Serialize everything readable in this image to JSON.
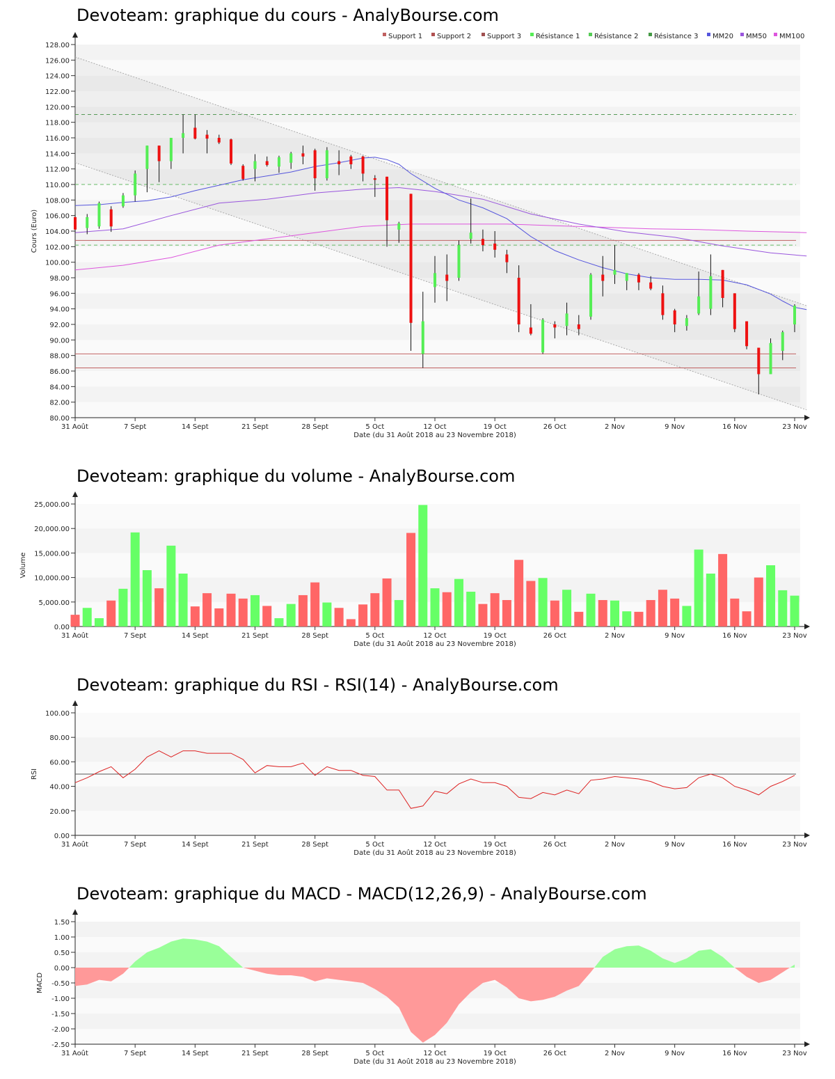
{
  "charts": {
    "price": {
      "title": "Devoteam: graphique du cours - AnalyBourse.com"
    },
    "volume": {
      "title": "Devoteam: graphique du volume - AnalyBourse.com"
    },
    "rsi": {
      "title": "Devoteam: graphique du RSI - RSI(14) - AnalyBourse.com"
    },
    "macd": {
      "title": "Devoteam: graphique du MACD - MACD(12,26,9) - AnalyBourse.com"
    }
  },
  "x_axis": {
    "label": "Date (du 31 Août 2018 au 23 Novembre 2018)",
    "ticks": [
      "31 Août",
      "7 Sept",
      "14 Sept",
      "21 Sept",
      "28 Sept",
      "5 Oct",
      "12 Oct",
      "19 Oct",
      "26 Oct",
      "2 Nov",
      "9 Nov",
      "16 Nov",
      "23 Nov"
    ]
  },
  "colors": {
    "up": "#55ee55",
    "down": "#ee1111",
    "mm20": "#5555dd",
    "mm50": "#9955dd",
    "mm100": "#dd55dd",
    "support": "#c06060",
    "resistance": "#66bb66",
    "vol_up": "#66ff66",
    "vol_down": "#ff6666",
    "macd_pos": "#99ff99",
    "macd_neg": "#ff9999",
    "rsi_line": "#dd2222"
  },
  "chart_data": [
    {
      "type": "candlestick",
      "title": "Devoteam: graphique du cours - AnalyBourse.com",
      "ylabel": "Cours (Euro)",
      "xlabel": "Date (du 31 Août 2018 au 23 Novembre 2018)",
      "ylim": [
        80,
        128
      ],
      "yticks": [
        "80.00",
        "82.00",
        "84.00",
        "86.00",
        "88.00",
        "90.00",
        "92.00",
        "94.00",
        "96.00",
        "98.00",
        "100.00",
        "102.00",
        "104.00",
        "106.00",
        "108.00",
        "110.00",
        "112.00",
        "114.00",
        "116.00",
        "118.00",
        "120.00",
        "122.00",
        "124.00",
        "126.00",
        "128.00"
      ],
      "legend": [
        "Support 1",
        "Support 2",
        "Support 3",
        "Résistance 1",
        "Résistance 2",
        "Résistance 3",
        "MM20",
        "MM50",
        "MM100"
      ],
      "legend_position": "top-right",
      "candles": [
        {
          "o": 105.8,
          "h": 106.2,
          "l": 103.8,
          "c": 104.2
        },
        {
          "o": 104.4,
          "h": 106.2,
          "l": 103.6,
          "c": 105.8
        },
        {
          "o": 104.6,
          "h": 107.8,
          "l": 104.3,
          "c": 107.6
        },
        {
          "o": 106.8,
          "h": 107.2,
          "l": 103.9,
          "c": 104.6
        },
        {
          "o": 107.2,
          "h": 108.9,
          "l": 107.0,
          "c": 108.6
        },
        {
          "o": 108.6,
          "h": 111.8,
          "l": 107.8,
          "c": 111.4
        },
        {
          "o": 112.0,
          "h": 115.0,
          "l": 109.0,
          "c": 115.0
        },
        {
          "o": 115.0,
          "h": 115.0,
          "l": 110.3,
          "c": 113.0
        },
        {
          "o": 113.0,
          "h": 116.0,
          "l": 112.0,
          "c": 116.0
        },
        {
          "o": 116.0,
          "h": 119.0,
          "l": 114.0,
          "c": 116.6
        },
        {
          "o": 117.3,
          "h": 119.0,
          "l": 115.8,
          "c": 115.9
        },
        {
          "o": 116.4,
          "h": 117.0,
          "l": 114.0,
          "c": 115.9
        },
        {
          "o": 116.0,
          "h": 116.4,
          "l": 115.2,
          "c": 115.4
        },
        {
          "o": 115.8,
          "h": 115.9,
          "l": 112.5,
          "c": 112.7
        },
        {
          "o": 112.4,
          "h": 112.6,
          "l": 110.5,
          "c": 110.7
        },
        {
          "o": 112.0,
          "h": 113.9,
          "l": 110.4,
          "c": 113.0
        },
        {
          "o": 113.0,
          "h": 113.6,
          "l": 112.3,
          "c": 112.5
        },
        {
          "o": 112.3,
          "h": 113.7,
          "l": 111.5,
          "c": 113.5
        },
        {
          "o": 112.8,
          "h": 114.2,
          "l": 112.0,
          "c": 114.0
        },
        {
          "o": 114.0,
          "h": 115.0,
          "l": 112.6,
          "c": 113.6
        },
        {
          "o": 114.4,
          "h": 114.6,
          "l": 109.2,
          "c": 110.8
        },
        {
          "o": 110.8,
          "h": 114.8,
          "l": 110.5,
          "c": 114.4
        },
        {
          "o": 113.0,
          "h": 114.4,
          "l": 111.2,
          "c": 112.6
        },
        {
          "o": 113.6,
          "h": 113.8,
          "l": 112.0,
          "c": 112.6
        },
        {
          "o": 113.6,
          "h": 113.7,
          "l": 110.4,
          "c": 111.4
        },
        {
          "o": 110.8,
          "h": 111.2,
          "l": 108.4,
          "c": 110.6
        },
        {
          "o": 111.0,
          "h": 111.0,
          "l": 102.0,
          "c": 105.4
        },
        {
          "o": 104.2,
          "h": 105.2,
          "l": 102.5,
          "c": 105.0
        },
        {
          "o": 108.8,
          "h": 108.8,
          "l": 88.6,
          "c": 92.2
        },
        {
          "o": 88.2,
          "h": 96.2,
          "l": 86.4,
          "c": 92.4
        },
        {
          "o": 96.8,
          "h": 100.8,
          "l": 94.8,
          "c": 98.6
        },
        {
          "o": 98.4,
          "h": 101.0,
          "l": 95.0,
          "c": 97.6
        },
        {
          "o": 98.0,
          "h": 102.8,
          "l": 97.6,
          "c": 102.2
        },
        {
          "o": 103.0,
          "h": 108.2,
          "l": 102.4,
          "c": 103.8
        },
        {
          "o": 103.0,
          "h": 104.2,
          "l": 101.4,
          "c": 102.2
        },
        {
          "o": 102.4,
          "h": 104.0,
          "l": 100.6,
          "c": 101.6
        },
        {
          "o": 101.0,
          "h": 101.6,
          "l": 98.6,
          "c": 100.0
        },
        {
          "o": 98.0,
          "h": 99.6,
          "l": 91.0,
          "c": 92.0
        },
        {
          "o": 91.6,
          "h": 94.6,
          "l": 90.6,
          "c": 90.8
        },
        {
          "o": 88.4,
          "h": 92.8,
          "l": 88.2,
          "c": 92.6
        },
        {
          "o": 92.0,
          "h": 92.4,
          "l": 90.2,
          "c": 91.6
        },
        {
          "o": 91.8,
          "h": 94.8,
          "l": 90.6,
          "c": 93.4
        },
        {
          "o": 92.0,
          "h": 93.2,
          "l": 90.6,
          "c": 91.4
        },
        {
          "o": 93.0,
          "h": 98.6,
          "l": 92.6,
          "c": 98.4
        },
        {
          "o": 98.4,
          "h": 100.8,
          "l": 95.6,
          "c": 97.6
        },
        {
          "o": 98.4,
          "h": 102.2,
          "l": 97.2,
          "c": 99.0
        },
        {
          "o": 97.6,
          "h": 98.6,
          "l": 96.4,
          "c": 98.6
        },
        {
          "o": 98.4,
          "h": 98.6,
          "l": 96.4,
          "c": 97.4
        },
        {
          "o": 97.4,
          "h": 98.2,
          "l": 96.4,
          "c": 96.6
        },
        {
          "o": 96.0,
          "h": 97.0,
          "l": 92.6,
          "c": 93.2
        },
        {
          "o": 93.8,
          "h": 94.0,
          "l": 91.0,
          "c": 92.0
        },
        {
          "o": 91.8,
          "h": 93.2,
          "l": 91.2,
          "c": 92.8
        },
        {
          "o": 93.4,
          "h": 98.8,
          "l": 93.2,
          "c": 95.6
        },
        {
          "o": 94.0,
          "h": 101.0,
          "l": 93.2,
          "c": 98.2
        },
        {
          "o": 99.0,
          "h": 99.0,
          "l": 94.2,
          "c": 95.4
        },
        {
          "o": 96.0,
          "h": 96.0,
          "l": 91.0,
          "c": 91.4
        },
        {
          "o": 92.4,
          "h": 92.4,
          "l": 88.8,
          "c": 89.2
        },
        {
          "o": 89.0,
          "h": 89.0,
          "l": 83.0,
          "c": 85.6
        },
        {
          "o": 85.6,
          "h": 90.2,
          "l": 85.6,
          "c": 89.6
        },
        {
          "o": 88.6,
          "h": 91.2,
          "l": 87.4,
          "c": 91.0
        },
        {
          "o": 92.0,
          "h": 94.6,
          "l": 91.0,
          "c": 94.4
        }
      ],
      "support_levels": [
        102.8,
        88.2,
        86.4
      ],
      "resistance_levels": [
        119.0,
        110.0,
        102.2
      ],
      "mm20": [
        [
          0,
          107.3
        ],
        [
          2,
          107.4
        ],
        [
          4,
          107.7
        ],
        [
          6,
          107.9
        ],
        [
          8,
          108.4
        ],
        [
          10,
          109.2
        ],
        [
          12,
          109.9
        ],
        [
          14,
          110.6
        ],
        [
          16,
          111.1
        ],
        [
          18,
          111.6
        ],
        [
          20,
          112.3
        ],
        [
          22,
          112.8
        ],
        [
          24,
          113.4
        ],
        [
          25,
          113.5
        ],
        [
          26,
          113.2
        ],
        [
          27,
          112.6
        ],
        [
          28,
          111.4
        ],
        [
          30,
          109.5
        ],
        [
          32,
          108.0
        ],
        [
          34,
          107.0
        ],
        [
          36,
          105.6
        ],
        [
          38,
          103.3
        ],
        [
          40,
          101.5
        ],
        [
          42,
          100.3
        ],
        [
          44,
          99.3
        ],
        [
          46,
          98.5
        ],
        [
          48,
          98.0
        ],
        [
          50,
          97.8
        ],
        [
          52,
          97.8
        ],
        [
          54,
          97.7
        ],
        [
          56,
          97.1
        ],
        [
          58,
          95.9
        ],
        [
          59,
          95.0
        ],
        [
          60,
          94.2
        ],
        [
          61,
          93.9
        ]
      ],
      "mm50": [
        [
          0,
          103.8
        ],
        [
          4,
          104.3
        ],
        [
          8,
          106.0
        ],
        [
          12,
          107.6
        ],
        [
          16,
          108.1
        ],
        [
          20,
          108.9
        ],
        [
          24,
          109.4
        ],
        [
          27,
          109.6
        ],
        [
          30,
          109.1
        ],
        [
          34,
          108.1
        ],
        [
          38,
          106.2
        ],
        [
          42,
          104.9
        ],
        [
          46,
          103.9
        ],
        [
          50,
          103.2
        ],
        [
          54,
          102.1
        ],
        [
          58,
          101.2
        ],
        [
          61,
          100.8
        ]
      ],
      "mm100": [
        [
          0,
          99.0
        ],
        [
          4,
          99.6
        ],
        [
          8,
          100.6
        ],
        [
          12,
          102.2
        ],
        [
          16,
          103.0
        ],
        [
          20,
          103.8
        ],
        [
          24,
          104.6
        ],
        [
          28,
          104.9
        ],
        [
          32,
          104.9
        ],
        [
          36,
          104.9
        ],
        [
          40,
          104.7
        ],
        [
          44,
          104.5
        ],
        [
          48,
          104.3
        ],
        [
          52,
          104.2
        ],
        [
          56,
          104.0
        ],
        [
          61,
          103.8
        ]
      ],
      "channel_upper": [
        [
          0,
          126.4
        ],
        [
          61,
          94.4
        ]
      ],
      "channel_lower": [
        [
          0,
          112.8
        ],
        [
          61,
          81.0
        ]
      ]
    },
    {
      "type": "bar",
      "title": "Devoteam: graphique du volume - AnalyBourse.com",
      "ylabel": "Volume",
      "xlabel": "Date (du 31 Août 2018 au 23 Novembre 2018)",
      "ylim": [
        0,
        25000
      ],
      "yticks": [
        "0.00",
        "5,000.00",
        "10,000.00",
        "15,000.00",
        "20,000.00",
        "25,000.00"
      ],
      "values": [
        2400,
        3800,
        1700,
        5300,
        7700,
        19200,
        11500,
        7800,
        16500,
        10800,
        4100,
        6800,
        3700,
        6700,
        5700,
        6400,
        4200,
        1700,
        4600,
        6400,
        9000,
        4900,
        3800,
        1500,
        4500,
        6800,
        9800,
        5400,
        19100,
        24800,
        7800,
        7000,
        9700,
        7100,
        4600,
        6800,
        5400,
        13600,
        9300,
        9900,
        5300,
        7500,
        3000,
        6700,
        5400,
        5300,
        3100,
        3000,
        5400,
        7500,
        5700,
        4200,
        15700,
        10800,
        14800,
        5700,
        3100,
        10000,
        12500,
        7400,
        6300
      ],
      "up": [
        false,
        true,
        true,
        false,
        true,
        true,
        true,
        false,
        true,
        true,
        false,
        false,
        false,
        false,
        false,
        true,
        false,
        true,
        true,
        false,
        false,
        true,
        false,
        false,
        false,
        false,
        false,
        true,
        false,
        true,
        true,
        false,
        true,
        true,
        false,
        false,
        false,
        false,
        false,
        true,
        false,
        true,
        false,
        true,
        false,
        true,
        true,
        false,
        false,
        false,
        false,
        true,
        true,
        true,
        false,
        false,
        false,
        false,
        true,
        true,
        true
      ]
    },
    {
      "type": "line",
      "title": "Devoteam: graphique du RSI - RSI(14) - AnalyBourse.com",
      "ylabel": "RSI",
      "xlabel": "Date (du 31 Août 2018 au 23 Novembre 2018)",
      "ylim": [
        0,
        100
      ],
      "yticks": [
        "0.00",
        "20.00",
        "40.00",
        "60.00",
        "80.00",
        "100.00"
      ],
      "reference_level": 50,
      "values": [
        43,
        47,
        52,
        56,
        47,
        54,
        64,
        69,
        64,
        69,
        69,
        67,
        67,
        67,
        62,
        51,
        57,
        56,
        56,
        59,
        49,
        56,
        53,
        53,
        49,
        48,
        37,
        37,
        22,
        24,
        36,
        34,
        42,
        46,
        43,
        43,
        40,
        31,
        30,
        35,
        33,
        37,
        34,
        45,
        46,
        48,
        47,
        46,
        44,
        40,
        38,
        39,
        47,
        50,
        47,
        40,
        37,
        33,
        40,
        44,
        49
      ]
    },
    {
      "type": "area",
      "title": "Devoteam: graphique du MACD - MACD(12,26,9) - AnalyBourse.com",
      "ylabel": "MACD",
      "xlabel": "Date (du 31 Août 2018 au 23 Novembre 2018)",
      "ylim": [
        -2.5,
        1.5
      ],
      "yticks": [
        "-2.50",
        "-2.00",
        "-1.50",
        "-1.00",
        "-0.50",
        "0.00",
        "0.50",
        "1.00",
        "1.50"
      ],
      "values": [
        -0.6,
        -0.55,
        -0.4,
        -0.45,
        -0.2,
        0.2,
        0.5,
        0.65,
        0.85,
        0.95,
        0.92,
        0.85,
        0.7,
        0.35,
        0.0,
        -0.1,
        -0.2,
        -0.25,
        -0.25,
        -0.3,
        -0.45,
        -0.35,
        -0.4,
        -0.45,
        -0.5,
        -0.7,
        -0.95,
        -1.3,
        -2.1,
        -2.45,
        -2.2,
        -1.8,
        -1.2,
        -0.8,
        -0.5,
        -0.4,
        -0.65,
        -1.0,
        -1.1,
        -1.05,
        -0.95,
        -0.75,
        -0.6,
        -0.15,
        0.35,
        0.6,
        0.7,
        0.72,
        0.55,
        0.3,
        0.15,
        0.3,
        0.55,
        0.6,
        0.35,
        0.0,
        -0.3,
        -0.5,
        -0.4,
        -0.15,
        0.1
      ]
    }
  ]
}
